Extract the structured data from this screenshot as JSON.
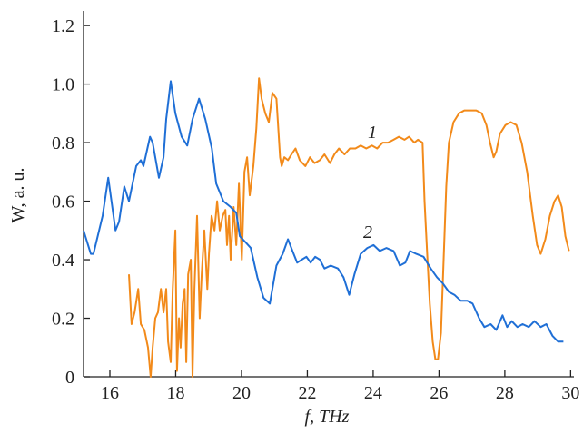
{
  "chart_data": {
    "type": "line",
    "xlabel": "f, THz",
    "ylabel": "W, a. u.",
    "annotations": [
      "1",
      "2"
    ],
    "xlim": [
      15.2,
      30.1
    ],
    "ylim": [
      0,
      1.25
    ],
    "xticks": [
      16,
      18,
      20,
      22,
      24,
      26,
      28,
      30
    ],
    "yticks": [
      0,
      0.2,
      0.4,
      0.6,
      0.8,
      {
        "value": 1,
        "label": "1.0"
      },
      1.2
    ],
    "series": [
      {
        "name": "1",
        "color": "#f28a1a",
        "x": [
          16.58,
          16.66,
          16.75,
          16.86,
          16.94,
          17.05,
          17.16,
          17.24,
          17.3,
          17.38,
          17.46,
          17.55,
          17.63,
          17.71,
          17.77,
          17.85,
          17.91,
          17.99,
          18.04,
          18.1,
          18.15,
          18.21,
          18.27,
          18.32,
          18.38,
          18.46,
          18.51,
          18.57,
          18.65,
          18.73,
          18.79,
          18.87,
          18.96,
          19.01,
          19.09,
          19.18,
          19.26,
          19.34,
          19.43,
          19.51,
          19.56,
          19.62,
          19.67,
          19.76,
          19.84,
          19.92,
          20.01,
          20.09,
          20.17,
          20.25,
          20.36,
          20.45,
          20.53,
          20.61,
          20.72,
          20.83,
          20.94,
          21.06,
          21.17,
          21.22,
          21.3,
          21.41,
          21.52,
          21.64,
          21.77,
          21.94,
          22.08,
          22.22,
          22.38,
          22.52,
          22.69,
          22.82,
          22.96,
          23.13,
          23.29,
          23.46,
          23.62,
          23.79,
          23.96,
          24.12,
          24.29,
          24.45,
          24.62,
          24.78,
          24.95,
          25.09,
          25.25,
          25.36,
          25.5,
          25.56,
          25.64,
          25.72,
          25.81,
          25.89,
          25.97,
          26.06,
          26.14,
          26.22,
          26.3,
          26.44,
          26.61,
          26.77,
          26.94,
          27.13,
          27.3,
          27.44,
          27.55,
          27.66,
          27.74,
          27.85,
          28.02,
          28.18,
          28.35,
          28.51,
          28.68,
          28.85,
          28.98,
          29.09,
          29.23,
          29.37,
          29.51,
          29.62,
          29.73,
          29.84,
          29.95
        ],
        "values": [
          0.35,
          0.18,
          0.22,
          0.3,
          0.18,
          0.16,
          0.1,
          0.0,
          0.1,
          0.2,
          0.22,
          0.3,
          0.22,
          0.3,
          0.12,
          0.05,
          0.3,
          0.5,
          0.02,
          0.2,
          0.1,
          0.25,
          0.3,
          0.05,
          0.35,
          0.4,
          0.0,
          0.3,
          0.55,
          0.2,
          0.35,
          0.5,
          0.3,
          0.42,
          0.55,
          0.5,
          0.6,
          0.5,
          0.55,
          0.57,
          0.45,
          0.55,
          0.4,
          0.58,
          0.45,
          0.66,
          0.4,
          0.7,
          0.75,
          0.62,
          0.72,
          0.85,
          1.02,
          0.95,
          0.9,
          0.87,
          0.97,
          0.95,
          0.75,
          0.72,
          0.75,
          0.74,
          0.76,
          0.78,
          0.74,
          0.72,
          0.75,
          0.73,
          0.74,
          0.76,
          0.73,
          0.76,
          0.78,
          0.76,
          0.78,
          0.78,
          0.79,
          0.78,
          0.79,
          0.78,
          0.8,
          0.8,
          0.81,
          0.82,
          0.81,
          0.82,
          0.8,
          0.81,
          0.8,
          0.6,
          0.42,
          0.25,
          0.12,
          0.06,
          0.06,
          0.15,
          0.4,
          0.65,
          0.8,
          0.87,
          0.9,
          0.91,
          0.91,
          0.91,
          0.9,
          0.86,
          0.8,
          0.75,
          0.77,
          0.83,
          0.86,
          0.87,
          0.86,
          0.8,
          0.7,
          0.55,
          0.45,
          0.42,
          0.47,
          0.55,
          0.6,
          0.62,
          0.58,
          0.48,
          0.43
        ]
      },
      {
        "name": "2",
        "color": "#1f6fd6",
        "x": [
          15.2,
          15.42,
          15.5,
          15.78,
          15.95,
          16.17,
          16.28,
          16.44,
          16.58,
          16.8,
          16.94,
          17.02,
          17.22,
          17.3,
          17.49,
          17.63,
          17.71,
          17.85,
          17.99,
          18.18,
          18.35,
          18.51,
          18.71,
          18.9,
          19.1,
          19.23,
          19.45,
          19.67,
          19.84,
          19.95,
          20.12,
          20.28,
          20.48,
          20.67,
          20.86,
          21.06,
          21.25,
          21.41,
          21.55,
          21.69,
          21.83,
          21.97,
          22.1,
          22.24,
          22.38,
          22.52,
          22.71,
          22.93,
          23.1,
          23.27,
          23.43,
          23.62,
          23.82,
          24.01,
          24.2,
          24.4,
          24.62,
          24.81,
          24.98,
          25.12,
          25.31,
          25.53,
          25.75,
          25.94,
          26.11,
          26.3,
          26.47,
          26.66,
          26.86,
          27.02,
          27.22,
          27.38,
          27.57,
          27.74,
          27.93,
          28.07,
          28.21,
          28.38,
          28.54,
          28.73,
          28.9,
          29.09,
          29.26,
          29.45,
          29.62,
          29.78
        ],
        "values": [
          0.5,
          0.42,
          0.42,
          0.55,
          0.68,
          0.5,
          0.53,
          0.65,
          0.6,
          0.72,
          0.74,
          0.72,
          0.82,
          0.8,
          0.68,
          0.75,
          0.88,
          1.01,
          0.9,
          0.82,
          0.79,
          0.88,
          0.95,
          0.88,
          0.78,
          0.66,
          0.6,
          0.58,
          0.56,
          0.48,
          0.46,
          0.44,
          0.34,
          0.27,
          0.25,
          0.38,
          0.42,
          0.47,
          0.43,
          0.39,
          0.4,
          0.41,
          0.39,
          0.41,
          0.4,
          0.37,
          0.38,
          0.37,
          0.34,
          0.28,
          0.35,
          0.42,
          0.44,
          0.45,
          0.43,
          0.44,
          0.43,
          0.38,
          0.39,
          0.43,
          0.42,
          0.41,
          0.37,
          0.34,
          0.32,
          0.29,
          0.28,
          0.26,
          0.26,
          0.25,
          0.2,
          0.17,
          0.18,
          0.16,
          0.21,
          0.17,
          0.19,
          0.17,
          0.18,
          0.17,
          0.19,
          0.17,
          0.18,
          0.14,
          0.12,
          0.12
        ]
      }
    ]
  }
}
